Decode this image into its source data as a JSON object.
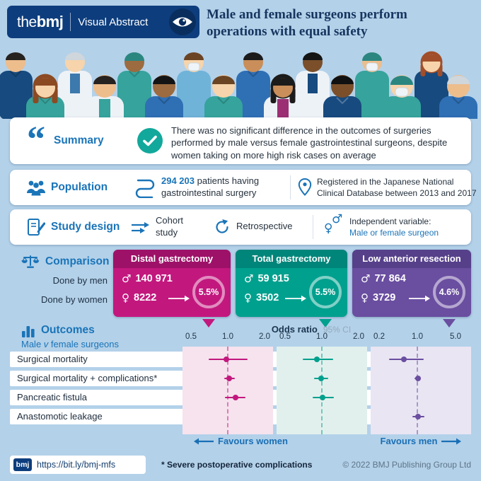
{
  "header": {
    "brand_the": "the",
    "brand_bmj": "bmj",
    "brand_label": "Visual Abstract",
    "title_line1": "Male and female surgeons perform",
    "title_line2": "operations with equal safety"
  },
  "summary": {
    "label": "Summary",
    "text": "There was no significant difference in the outcomes of surgeries performed by male versus female gastrointestinal surgeons, despite women taking on more high risk cases on average"
  },
  "population": {
    "label": "Population",
    "count": "294 203",
    "count_rest": "patients having",
    "line2": "gastrointestinal surgery",
    "registry_line1": "Registered in the Japanese National",
    "registry_line2": "Clinical Database between 2013 and 2017"
  },
  "study_design": {
    "label": "Study design",
    "cohort_line1": "Cohort",
    "cohort_line2": "study",
    "retrospective": "Retrospective",
    "variable_line1": "Independent variable:",
    "variable_line2": "Male or female surgeon"
  },
  "comparison": {
    "label": "Comparison",
    "row_label_men": "Done by men",
    "row_label_women": "Done by women",
    "male_symbol": "♂",
    "female_symbol": "♀",
    "groups": [
      {
        "title": "Distal gastrectomy",
        "men": "140 971",
        "women": "8222",
        "rate": "5.5%",
        "color": "#c2187e",
        "header_color": "#9e1168"
      },
      {
        "title": "Total gastrectomy",
        "men": "59 915",
        "women": "3502",
        "rate": "5.5%",
        "color": "#00a08e",
        "header_color": "#00857a"
      },
      {
        "title": "Low anterior resection",
        "men": "77 864",
        "women": "3729",
        "rate": "4.6%",
        "color": "#6a4ea0",
        "header_color": "#56408a"
      }
    ]
  },
  "outcomes": {
    "label": "Outcomes",
    "sub_pre": "Male ",
    "sub_v": "v",
    "sub_post": " female surgeons"
  },
  "chart_data": {
    "type": "scatter",
    "variant": "forest-plot",
    "title": "Odds ratio",
    "ci_label": "95% CI",
    "rows": [
      "Surgical mortality",
      "Surgical mortality + complications*",
      "Pancreatic fistula",
      "Anastomotic leakage"
    ],
    "columns": [
      {
        "name": "Distal gastrectomy",
        "color": "#c2187e",
        "tint": "#f6e3ee",
        "ticks": [
          0.5,
          1.0,
          2.0
        ],
        "scale": "log"
      },
      {
        "name": "Total gastrectomy",
        "color": "#00a08e",
        "tint": "#e2f0ed",
        "ticks": [
          0.5,
          1.0,
          2.0
        ],
        "scale": "log"
      },
      {
        "name": "Low anterior resection",
        "color": "#6a4ea0",
        "tint": "#e9e5f3",
        "ticks": [
          0.2,
          1.0,
          5.0
        ],
        "scale": "log"
      }
    ],
    "reference_line": 1.0,
    "points": [
      {
        "row": 0,
        "col": 0,
        "or": 0.97,
        "ci": [
          0.7,
          1.45
        ]
      },
      {
        "row": 0,
        "col": 1,
        "or": 0.91,
        "ci": [
          0.7,
          1.23
        ]
      },
      {
        "row": 0,
        "col": 2,
        "or": 0.56,
        "ci": [
          0.3,
          1.3
        ]
      },
      {
        "row": 1,
        "col": 0,
        "or": 1.03,
        "ci": [
          0.93,
          1.14
        ]
      },
      {
        "row": 1,
        "col": 1,
        "or": 0.99,
        "ci": [
          0.86,
          1.13
        ]
      },
      {
        "row": 1,
        "col": 2,
        "or": 1.02,
        "ci": [
          0.89,
          1.16
        ]
      },
      {
        "row": 2,
        "col": 0,
        "or": 1.16,
        "ci": [
          0.95,
          1.4
        ]
      },
      {
        "row": 2,
        "col": 1,
        "or": 1.02,
        "ci": [
          0.84,
          1.26
        ]
      },
      {
        "row": 3,
        "col": 2,
        "or": 1.03,
        "ci": [
          0.8,
          1.35
        ]
      }
    ],
    "favours_left": "Favours women",
    "favours_right": "Favours men"
  },
  "footer": {
    "link_logo": "bmj",
    "link": "https://bit.ly/bmj-mfs",
    "footnote": "* Severe postoperative complications",
    "copyright": "© 2022 BMJ Publishing Group Ltd"
  },
  "colors": {
    "accent": "#1a74b8",
    "navy": "#0d3d7d",
    "page_bg": "#b3d1e9",
    "check": "#12a89b"
  }
}
